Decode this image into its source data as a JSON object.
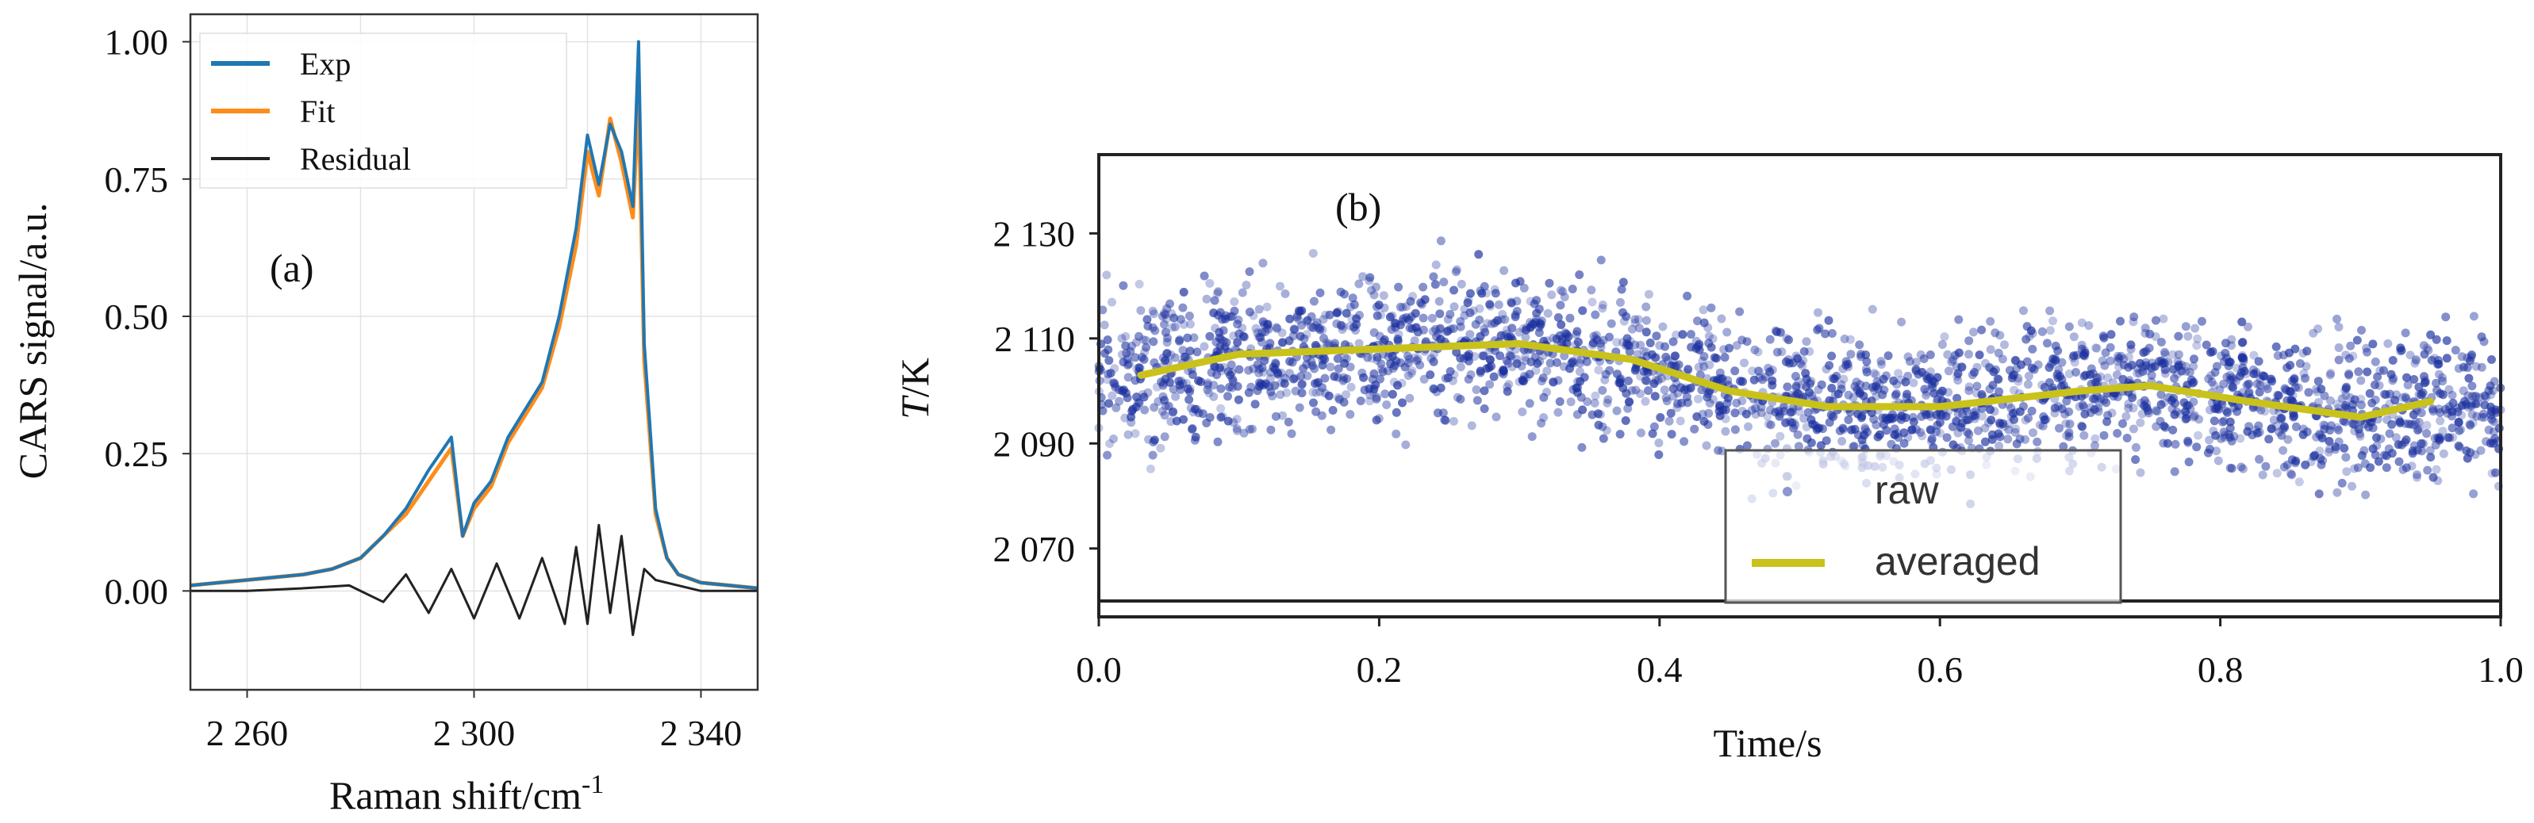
{
  "chart_data": [
    {
      "type": "line",
      "panel_label": "(a)",
      "xlabel": "Raman shift/cm",
      "xlabel_sup": "-1",
      "ylabel": "CARS signal/a.u.",
      "xlim": [
        2250,
        2350
      ],
      "ylim": [
        -0.18,
        1.05
      ],
      "xticks": [
        2260,
        2300,
        2340
      ],
      "xtick_labels": [
        "2 260",
        "2 300",
        "2 340"
      ],
      "yticks": [
        0.0,
        0.25,
        0.5,
        0.75,
        1.0
      ],
      "ytick_labels": [
        "0.00",
        "0.25",
        "0.50",
        "0.75",
        "1.00"
      ],
      "grid": true,
      "legend_position": "top-left",
      "colors": {
        "Exp": "#1f77b4",
        "Fit": "#ff8c1a",
        "Residual": "#222222"
      },
      "series": [
        {
          "name": "Exp",
          "x": [
            2250,
            2255,
            2260,
            2265,
            2270,
            2275,
            2280,
            2284,
            2288,
            2292,
            2296,
            2298,
            2300,
            2303,
            2306,
            2309,
            2312,
            2315,
            2318,
            2320,
            2322,
            2324,
            2326,
            2328,
            2329,
            2330,
            2331,
            2332,
            2334,
            2336,
            2340,
            2345,
            2350
          ],
          "y": [
            0.01,
            0.015,
            0.02,
            0.025,
            0.03,
            0.04,
            0.06,
            0.1,
            0.15,
            0.22,
            0.28,
            0.1,
            0.16,
            0.2,
            0.28,
            0.33,
            0.38,
            0.5,
            0.66,
            0.83,
            0.74,
            0.85,
            0.8,
            0.7,
            1.0,
            0.45,
            0.3,
            0.15,
            0.06,
            0.03,
            0.015,
            0.01,
            0.005
          ]
        },
        {
          "name": "Fit",
          "x": [
            2250,
            2255,
            2260,
            2265,
            2270,
            2275,
            2280,
            2284,
            2288,
            2292,
            2296,
            2298,
            2300,
            2303,
            2306,
            2309,
            2312,
            2315,
            2318,
            2320,
            2322,
            2324,
            2326,
            2328,
            2329,
            2330,
            2331,
            2332,
            2334,
            2336,
            2340,
            2345,
            2350
          ],
          "y": [
            0.01,
            0.015,
            0.02,
            0.025,
            0.03,
            0.04,
            0.06,
            0.1,
            0.14,
            0.2,
            0.26,
            0.1,
            0.15,
            0.19,
            0.27,
            0.32,
            0.37,
            0.48,
            0.63,
            0.8,
            0.72,
            0.86,
            0.78,
            0.68,
            0.9,
            0.42,
            0.28,
            0.14,
            0.06,
            0.03,
            0.015,
            0.01,
            0.005
          ]
        },
        {
          "name": "Residual",
          "x": [
            2250,
            2260,
            2270,
            2278,
            2284,
            2288,
            2292,
            2296,
            2300,
            2304,
            2308,
            2312,
            2316,
            2318,
            2320,
            2322,
            2324,
            2326,
            2328,
            2330,
            2332,
            2336,
            2340,
            2350
          ],
          "y": [
            0.0,
            0.0,
            0.005,
            0.01,
            -0.02,
            0.03,
            -0.04,
            0.04,
            -0.05,
            0.05,
            -0.05,
            0.06,
            -0.06,
            0.08,
            -0.06,
            0.12,
            -0.04,
            0.1,
            -0.08,
            0.04,
            0.02,
            0.01,
            0.0,
            0.0
          ]
        }
      ]
    },
    {
      "type": "scatter",
      "panel_label": "(b)",
      "xlabel": "Time/s",
      "ylabel_italic": "T",
      "ylabel_rest": "/K",
      "xlim": [
        0.0,
        1.0
      ],
      "ylim": [
        2060,
        2145
      ],
      "xticks": [
        0.0,
        0.2,
        0.4,
        0.6,
        0.8,
        1.0
      ],
      "xtick_labels": [
        "0.0",
        "0.2",
        "0.4",
        "0.6",
        "0.8",
        "1.0"
      ],
      "yticks": [
        2070,
        2090,
        2110,
        2130
      ],
      "ytick_labels": [
        "2 070",
        "2 090",
        "2 110",
        "2 130"
      ],
      "grid": false,
      "legend_position": "bottom-center",
      "colors": {
        "raw": "#1a2f9e",
        "averaged": "#c9c21a"
      },
      "series": [
        {
          "name": "raw",
          "x_range": [
            0.0,
            1.0
          ],
          "mean_y": 2102,
          "spread_y": 9
        },
        {
          "name": "averaged",
          "x": [
            0.03,
            0.1,
            0.2,
            0.3,
            0.38,
            0.45,
            0.52,
            0.6,
            0.7,
            0.75,
            0.82,
            0.9,
            0.95
          ],
          "y": [
            2103,
            2107,
            2108,
            2109,
            2106,
            2100,
            2097,
            2097,
            2100,
            2101,
            2098,
            2095,
            2098
          ]
        }
      ]
    }
  ]
}
